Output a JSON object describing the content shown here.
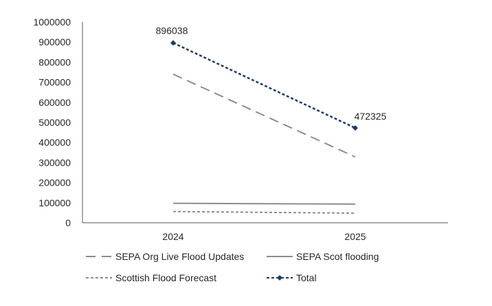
{
  "chart_data": {
    "type": "line",
    "categories": [
      "2024",
      "2025"
    ],
    "ylim": [
      0,
      1000000
    ],
    "yticks": [
      0,
      100000,
      200000,
      300000,
      400000,
      500000,
      600000,
      700000,
      800000,
      900000,
      1000000
    ],
    "grid": false,
    "legend_position": "bottom",
    "series": [
      {
        "name": "SEPA Org Live Flood Updates",
        "values": [
          740000,
          328000
        ],
        "color": "#8c8c8c",
        "style": "long-dash"
      },
      {
        "name": "SEPA Scot flooding",
        "values": [
          97000,
          93000
        ],
        "color": "#8c8c8c",
        "style": "solid"
      },
      {
        "name": "Scottish Flood Forecast",
        "values": [
          56000,
          48000
        ],
        "color": "#8c8c8c",
        "style": "short-dash"
      },
      {
        "name": "Total",
        "values": [
          896038,
          472325
        ],
        "color": "#1f3a5f",
        "style": "dotted-marker",
        "data_labels": [
          "896038",
          "472325"
        ]
      }
    ]
  }
}
